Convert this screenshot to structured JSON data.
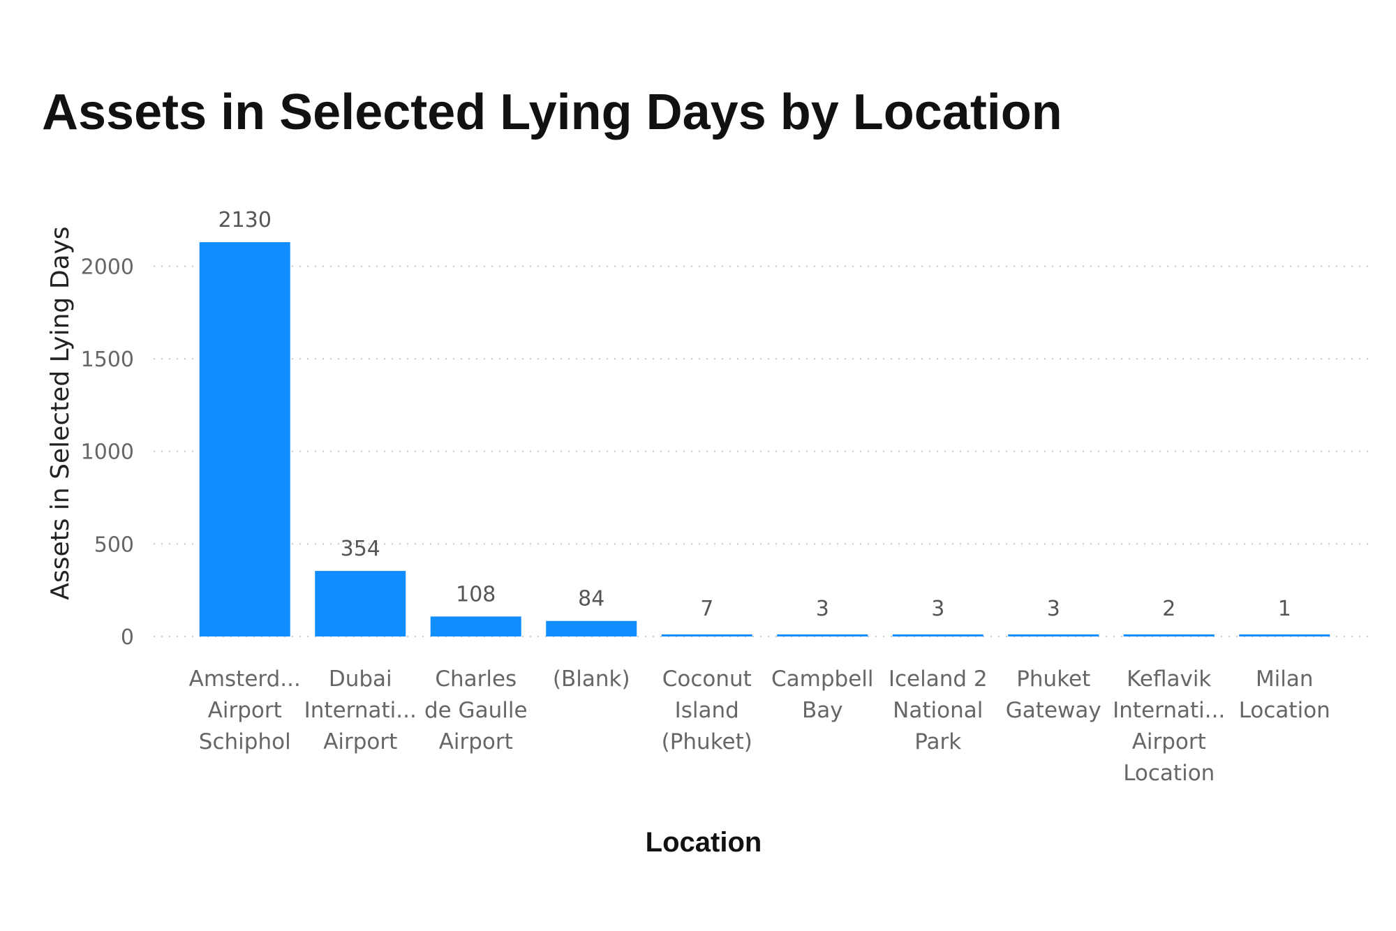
{
  "chart_data": {
    "type": "bar",
    "title": "Assets in Selected Lying Days by Location",
    "xlabel": "Location",
    "ylabel": "Assets in Selected Lying Days",
    "categories": [
      [
        "Amsterd...",
        "Airport",
        "Schiphol"
      ],
      [
        "Dubai",
        "Internati...",
        "Airport"
      ],
      [
        "Charles",
        "de Gaulle",
        "Airport"
      ],
      [
        "(Blank)"
      ],
      [
        "Coconut",
        "Island",
        "(Phuket)"
      ],
      [
        "Campbell",
        "Bay"
      ],
      [
        "Iceland 2",
        "National",
        "Park"
      ],
      [
        "Phuket",
        "Gateway"
      ],
      [
        "Keflavik",
        "Internati...",
        "Airport",
        "Location"
      ],
      [
        "Milan",
        "Location"
      ]
    ],
    "values": [
      2130,
      354,
      108,
      84,
      7,
      3,
      3,
      3,
      2,
      1
    ],
    "data_labels": [
      "2130",
      "354",
      "108",
      "84",
      "7",
      "3",
      "3",
      "3",
      "2",
      "1"
    ],
    "yticks": [
      0,
      500,
      1000,
      1500,
      2000
    ],
    "ylim": [
      0,
      2130
    ],
    "grid": true,
    "bar_color": "#118dff"
  }
}
